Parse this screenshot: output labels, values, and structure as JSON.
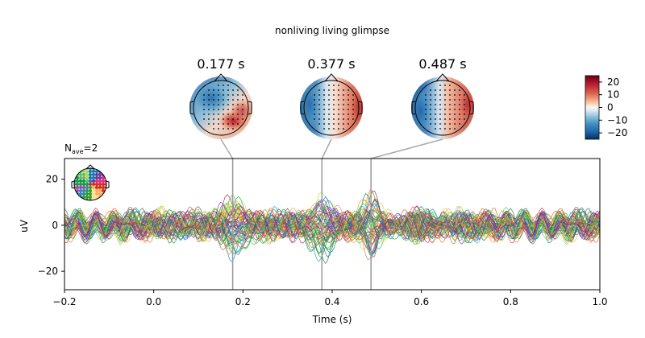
{
  "chart_data": [
    {
      "type": "line",
      "title": "nonliving living glimpse",
      "xlabel": "Time (s)",
      "ylabel": "uV",
      "xlim": [
        -0.2,
        1.0
      ],
      "ylim": [
        -28,
        29
      ],
      "xticks": [
        -0.2,
        0.0,
        0.2,
        0.4,
        0.6,
        0.8,
        1.0
      ],
      "xtick_labels": [
        "−0.2",
        "0.0",
        "0.2",
        "0.4",
        "0.6",
        "0.8",
        "1.0"
      ],
      "yticks": [
        -20,
        0,
        20
      ],
      "ytick_labels": [
        "−20",
        "0",
        "20"
      ],
      "nave_label": "N",
      "nave_sub": "ave",
      "nave_value": "=2",
      "grid": false,
      "marker_times": [
        0.177,
        0.377,
        0.487
      ],
      "n_channels": 60,
      "channel_colormap": "sensor-position rainbow (green / blue / purple / magenta / orange / yellow)"
    },
    {
      "type": "heatmap",
      "topomaps": [
        {
          "time": 0.177,
          "label": "0.177 s"
        },
        {
          "time": 0.377,
          "label": "0.377 s"
        },
        {
          "time": 0.487,
          "label": "0.487 s"
        }
      ],
      "colormap": "RdBu_r",
      "colorbar_ticks": [
        20,
        10,
        0,
        -10,
        -20
      ],
      "colorbar_tick_labels": [
        "20",
        "10",
        "0",
        "−10",
        "−20"
      ],
      "colorbar_range": [
        -25,
        25
      ]
    }
  ]
}
